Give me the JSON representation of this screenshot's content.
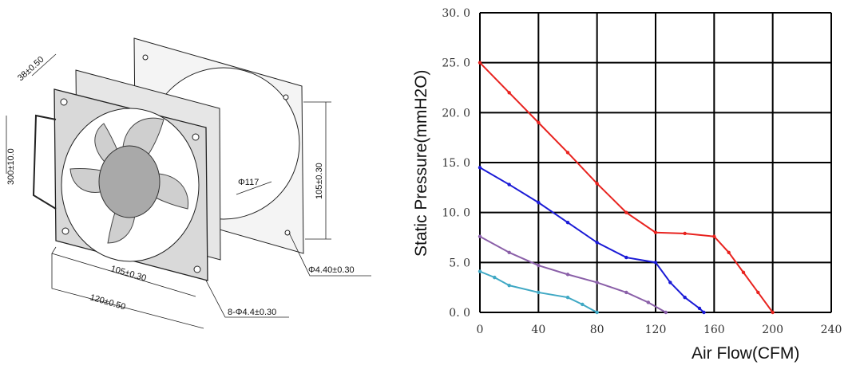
{
  "drawing": {
    "dims": {
      "depth": "38±0.50",
      "lead_length": "300±10.0",
      "hole_spacing": "105±0.30",
      "frame_width": "120±0.50",
      "hole_spacing_vertical": "105±0.30",
      "guard_diameter": "Φ117",
      "guard_hole": "Φ4.40±0.30",
      "mount_holes": "8-Φ4.4±0.30"
    }
  },
  "chart_data": {
    "type": "line",
    "xlabel": "Air Flow(CFM)",
    "ylabel": "Static Pressure(mmH2O)",
    "xlim": [
      0,
      240
    ],
    "ylim": [
      0,
      30
    ],
    "xticks": [
      "0",
      "40",
      "80",
      "120",
      "160",
      "200",
      "240"
    ],
    "yticks": [
      "0. 0",
      "5. 0",
      "10. 0",
      "15. 0",
      "20. 0",
      "25. 0",
      "30. 0"
    ],
    "grid": true,
    "series": [
      {
        "color": "#e8231f",
        "x": [
          0,
          20,
          40,
          60,
          80,
          100,
          120,
          140,
          160,
          170,
          180,
          190,
          200
        ],
        "y": [
          25,
          22,
          19,
          16,
          12.9,
          10,
          8,
          7.9,
          7.6,
          6,
          4,
          2,
          0
        ]
      },
      {
        "color": "#1a1ad6",
        "x": [
          0,
          20,
          40,
          60,
          80,
          100,
          120,
          130,
          140,
          150,
          153
        ],
        "y": [
          14.5,
          12.8,
          11,
          9,
          7,
          5.5,
          5,
          3,
          1.5,
          0.4,
          0
        ]
      },
      {
        "color": "#8a5fa8",
        "x": [
          0,
          20,
          40,
          60,
          80,
          100,
          115,
          127
        ],
        "y": [
          7.6,
          6,
          4.7,
          3.8,
          3,
          2,
          1,
          0
        ]
      },
      {
        "color": "#3fa8c4",
        "x": [
          0,
          10,
          20,
          40,
          60,
          70,
          80
        ],
        "y": [
          4.1,
          3.5,
          2.7,
          2,
          1.5,
          0.8,
          0
        ]
      }
    ]
  }
}
